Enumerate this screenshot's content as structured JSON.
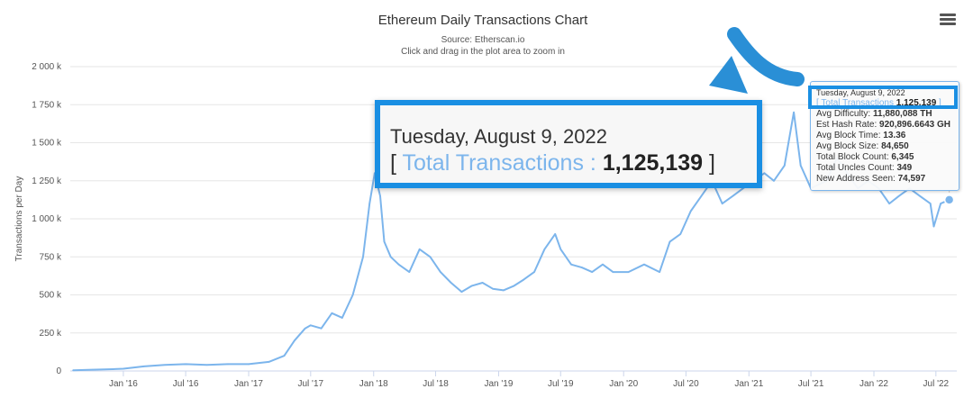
{
  "chart_data": {
    "type": "line",
    "title": "Ethereum Daily Transactions Chart",
    "subtitle": "Source: Etherscan.io",
    "instruction": "Click and drag in the plot area to zoom in",
    "ylabel": "Transactions per Day",
    "xlabel": "",
    "ylim": [
      0,
      2000000
    ],
    "yticks": [
      {
        "value": 0,
        "label": "0"
      },
      {
        "value": 250000,
        "label": "250 k"
      },
      {
        "value": 500000,
        "label": "500 k"
      },
      {
        "value": 750000,
        "label": "750 k"
      },
      {
        "value": 1000000,
        "label": "1 000 k"
      },
      {
        "value": 1250000,
        "label": "1 250 k"
      },
      {
        "value": 1500000,
        "label": "1 500 k"
      },
      {
        "value": 1750000,
        "label": "1 750 k"
      },
      {
        "value": 2000000,
        "label": "2 000 k"
      }
    ],
    "xrange": [
      "2015-07-30",
      "2022-08-31"
    ],
    "xticks": [
      {
        "date": "2016-01-01",
        "label": "Jan '16"
      },
      {
        "date": "2016-07-01",
        "label": "Jul '16"
      },
      {
        "date": "2017-01-01",
        "label": "Jan '17"
      },
      {
        "date": "2017-07-01",
        "label": "Jul '17"
      },
      {
        "date": "2018-01-01",
        "label": "Jan '18"
      },
      {
        "date": "2018-07-01",
        "label": "Jul '18"
      },
      {
        "date": "2019-01-01",
        "label": "Jan '19"
      },
      {
        "date": "2019-07-01",
        "label": "Jul '19"
      },
      {
        "date": "2020-01-01",
        "label": "Jan '20"
      },
      {
        "date": "2020-07-01",
        "label": "Jul '20"
      },
      {
        "date": "2021-01-01",
        "label": "Jan '21"
      },
      {
        "date": "2021-07-01",
        "label": "Jul '21"
      },
      {
        "date": "2022-01-01",
        "label": "Jan '22"
      },
      {
        "date": "2022-07-01",
        "label": "Jul '22"
      }
    ],
    "grid": true,
    "legend": "none",
    "series": [
      {
        "name": "Total Transactions",
        "color": "#7cb5ec",
        "points": [
          [
            "2015-08-07",
            5000
          ],
          [
            "2015-10-01",
            8000
          ],
          [
            "2015-12-01",
            12000
          ],
          [
            "2016-01-01",
            15000
          ],
          [
            "2016-03-01",
            30000
          ],
          [
            "2016-05-01",
            40000
          ],
          [
            "2016-07-01",
            45000
          ],
          [
            "2016-09-01",
            40000
          ],
          [
            "2016-11-01",
            45000
          ],
          [
            "2017-01-01",
            45000
          ],
          [
            "2017-03-01",
            60000
          ],
          [
            "2017-04-15",
            100000
          ],
          [
            "2017-05-15",
            200000
          ],
          [
            "2017-06-15",
            280000
          ],
          [
            "2017-07-01",
            300000
          ],
          [
            "2017-08-01",
            280000
          ],
          [
            "2017-09-01",
            380000
          ],
          [
            "2017-10-01",
            350000
          ],
          [
            "2017-11-01",
            500000
          ],
          [
            "2017-12-01",
            750000
          ],
          [
            "2017-12-20",
            1100000
          ],
          [
            "2018-01-04",
            1300000
          ],
          [
            "2018-01-20",
            1150000
          ],
          [
            "2018-02-01",
            850000
          ],
          [
            "2018-02-20",
            750000
          ],
          [
            "2018-03-15",
            700000
          ],
          [
            "2018-04-15",
            650000
          ],
          [
            "2018-05-15",
            800000
          ],
          [
            "2018-06-15",
            750000
          ],
          [
            "2018-07-15",
            650000
          ],
          [
            "2018-08-15",
            580000
          ],
          [
            "2018-09-15",
            520000
          ],
          [
            "2018-10-15",
            560000
          ],
          [
            "2018-11-15",
            580000
          ],
          [
            "2018-12-15",
            540000
          ],
          [
            "2019-01-15",
            530000
          ],
          [
            "2019-02-15",
            560000
          ],
          [
            "2019-03-15",
            600000
          ],
          [
            "2019-04-15",
            650000
          ],
          [
            "2019-05-15",
            800000
          ],
          [
            "2019-06-15",
            900000
          ],
          [
            "2019-07-01",
            800000
          ],
          [
            "2019-08-01",
            700000
          ],
          [
            "2019-09-01",
            680000
          ],
          [
            "2019-10-01",
            650000
          ],
          [
            "2019-11-01",
            700000
          ],
          [
            "2019-12-01",
            650000
          ],
          [
            "2020-01-15",
            650000
          ],
          [
            "2020-03-01",
            700000
          ],
          [
            "2020-04-15",
            650000
          ],
          [
            "2020-05-15",
            850000
          ],
          [
            "2020-06-15",
            900000
          ],
          [
            "2020-07-15",
            1050000
          ],
          [
            "2020-08-15",
            1150000
          ],
          [
            "2020-09-15",
            1250000
          ],
          [
            "2020-10-15",
            1100000
          ],
          [
            "2020-11-15",
            1150000
          ],
          [
            "2020-12-15",
            1200000
          ],
          [
            "2021-01-15",
            1250000
          ],
          [
            "2021-02-15",
            1300000
          ],
          [
            "2021-03-15",
            1250000
          ],
          [
            "2021-04-15",
            1350000
          ],
          [
            "2021-05-12",
            1700000
          ],
          [
            "2021-06-01",
            1350000
          ],
          [
            "2021-07-01",
            1200000
          ],
          [
            "2021-08-15",
            1250000
          ],
          [
            "2021-09-15",
            1400000
          ],
          [
            "2021-10-15",
            1300000
          ],
          [
            "2021-11-15",
            1200000
          ],
          [
            "2021-12-15",
            1250000
          ],
          [
            "2022-01-15",
            1200000
          ],
          [
            "2022-02-15",
            1100000
          ],
          [
            "2022-03-15",
            1150000
          ],
          [
            "2022-04-15",
            1200000
          ],
          [
            "2022-05-15",
            1150000
          ],
          [
            "2022-06-15",
            1100000
          ],
          [
            "2022-06-25",
            950000
          ],
          [
            "2022-07-15",
            1100000
          ],
          [
            "2022-08-09",
            1125139
          ]
        ]
      }
    ]
  },
  "toolbar": {
    "menu_icon": "hamburger-menu-icon"
  },
  "tooltip": {
    "date": "Tuesday, August 9, 2022",
    "series_label": "Total Transactions",
    "series_value": "1,125,139",
    "rows": [
      {
        "label": "Avg Difficulty:",
        "value": "11,880,088 TH"
      },
      {
        "label": "Est Hash Rate:",
        "value": "920,896.6643 GH"
      },
      {
        "label": "Avg Block Time:",
        "value": "13.36"
      },
      {
        "label": "Avg Block Size:",
        "value": "84,650"
      },
      {
        "label": "Total Block Count:",
        "value": "6,345"
      },
      {
        "label": "Total Uncles Count:",
        "value": "349"
      },
      {
        "label": "New Address Seen:",
        "value": "74,597"
      }
    ]
  },
  "zoom": {
    "date": "Tuesday, August 9, 2022",
    "bracket_open": "[",
    "series_label": "Total Transactions",
    "separator": ":",
    "value": "1,125,139",
    "bracket_close": "]"
  },
  "colors": {
    "series": "#7cb5ec",
    "highlight": "#1a8fe3",
    "arrow": "#2a8fd6"
  }
}
